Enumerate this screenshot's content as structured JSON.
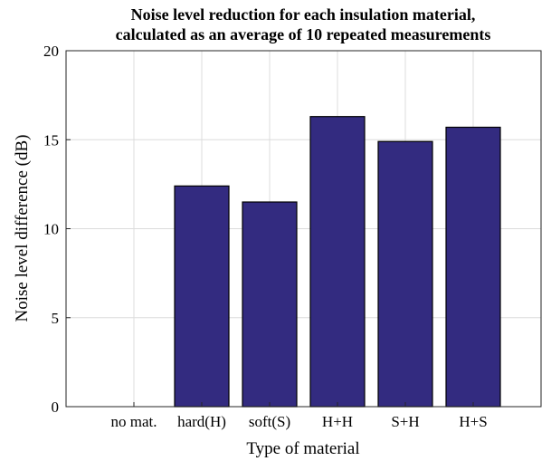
{
  "chart_data": {
    "type": "bar",
    "title": [
      "Noise level reduction for each insulation material,",
      "calculated as an average of 10 repeated measurements"
    ],
    "xlabel": "Type of material",
    "ylabel": "Noise level difference (dB)",
    "categories": [
      "no mat.",
      "hard(H)",
      "soft(S)",
      "H+H",
      "S+H",
      "H+S"
    ],
    "values": [
      0,
      12.4,
      11.5,
      16.3,
      14.9,
      15.7
    ],
    "color": "#332b80",
    "ylim": [
      0,
      20
    ],
    "yticks": [
      0,
      5,
      10,
      15,
      20
    ],
    "grid": true
  }
}
